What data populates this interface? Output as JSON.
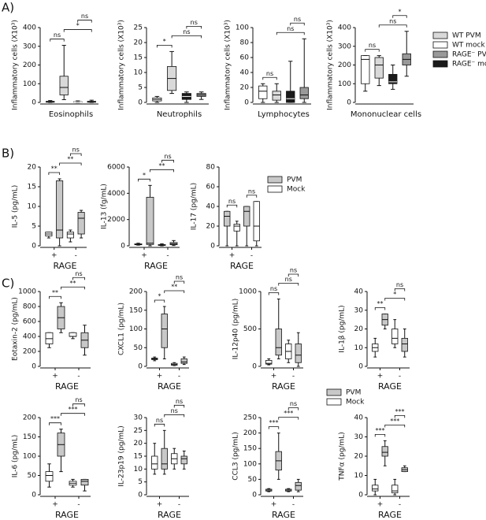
{
  "panels": [
    {
      "label": "A)",
      "legend": [
        {
          "name": "WT PVM",
          "color": "#d9d9d9"
        },
        {
          "name": "WT mock",
          "color": "#ffffff"
        },
        {
          "name": "RAGE⁻ PVM",
          "color": "#999999"
        },
        {
          "name": "RAGE⁻ mock",
          "color": "#1a1a1a"
        }
      ]
    },
    {
      "label": "B)",
      "legend": [
        {
          "name": "PVM",
          "color": "#c8c8c8"
        },
        {
          "name": "Mock",
          "color": "#ffffff"
        }
      ]
    },
    {
      "label": "C)",
      "legend": [
        {
          "name": "PVM",
          "color": "#c8c8c8"
        },
        {
          "name": "Mock",
          "color": "#ffffff"
        }
      ]
    }
  ],
  "chart_data": [
    {
      "type": "box",
      "ylabel": "Inflammatory cells (X10³)",
      "xlabel": "Eosinophils",
      "ylim": [
        0,
        400
      ],
      "yticks": [
        0,
        100,
        200,
        300,
        400
      ],
      "boxes": [
        {
          "color": "#ffffff",
          "values": [
            0,
            1,
            3,
            6,
            10
          ]
        },
        {
          "color": "#d9d9d9",
          "values": [
            15,
            40,
            80,
            140,
            305
          ]
        },
        {
          "color": "#1a1a1a",
          "values": [
            0,
            1,
            2,
            4,
            8
          ]
        },
        {
          "color": "#999999",
          "values": [
            0,
            1,
            3,
            6,
            12
          ]
        }
      ],
      "annotations": [
        {
          "text": "ns",
          "from": 0,
          "to": 1
        },
        {
          "text": "*",
          "from": 1,
          "to": 3
        },
        {
          "text": "ns",
          "from": 2,
          "to": 3
        }
      ]
    },
    {
      "type": "box",
      "ylabel": "Inflammatory cells (X10³)",
      "xlabel": "Neutrophils",
      "ylim": [
        0,
        25
      ],
      "yticks": [
        0,
        5,
        10,
        15,
        20,
        25
      ],
      "boxes": [
        {
          "color": "#ffffff",
          "values": [
            0,
            0.5,
            1,
            1.5,
            2
          ]
        },
        {
          "color": "#d9d9d9",
          "values": [
            3,
            4,
            8,
            12,
            17
          ]
        },
        {
          "color": "#1a1a1a",
          "values": [
            0,
            1,
            2,
            3,
            3.5
          ]
        },
        {
          "color": "#999999",
          "values": [
            1,
            2,
            2.5,
            3,
            3.5
          ]
        }
      ],
      "annotations": [
        {
          "text": "*",
          "from": 0,
          "to": 1
        },
        {
          "text": "ns",
          "from": 1,
          "to": 3
        },
        {
          "text": "ns",
          "from": 2,
          "to": 3
        }
      ]
    },
    {
      "type": "box",
      "ylabel": "Inflammatory cells (X10³)",
      "xlabel": "Lymphocytes",
      "ylim": [
        0,
        100
      ],
      "yticks": [
        0,
        20,
        40,
        60,
        80,
        100
      ],
      "boxes": [
        {
          "color": "#ffffff",
          "values": [
            0,
            5,
            15,
            22,
            25
          ]
        },
        {
          "color": "#d9d9d9",
          "values": [
            0,
            3,
            10,
            15,
            25
          ]
        },
        {
          "color": "#1a1a1a",
          "values": [
            0,
            0,
            5,
            15,
            55
          ]
        },
        {
          "color": "#999999",
          "values": [
            0,
            5,
            10,
            20,
            85
          ]
        }
      ],
      "annotations": [
        {
          "text": "ns",
          "from": 0,
          "to": 1
        },
        {
          "text": "ns",
          "from": 1,
          "to": 3
        },
        {
          "text": "ns",
          "from": 2,
          "to": 3
        }
      ]
    },
    {
      "type": "box",
      "ylabel": "Inflammatory cells (X10³)",
      "xlabel": "Mononuclear cells",
      "ylim": [
        0,
        400
      ],
      "yticks": [
        0,
        100,
        200,
        300,
        400
      ],
      "boxes": [
        {
          "color": "#ffffff",
          "values": [
            60,
            100,
            230,
            250,
            250
          ]
        },
        {
          "color": "#d9d9d9",
          "values": [
            90,
            130,
            200,
            240,
            250
          ]
        },
        {
          "color": "#1a1a1a",
          "values": [
            70,
            100,
            110,
            150,
            200
          ]
        },
        {
          "color": "#999999",
          "values": [
            140,
            200,
            230,
            260,
            380
          ]
        }
      ],
      "annotations": [
        {
          "text": "ns",
          "from": 0,
          "to": 1
        },
        {
          "text": "ns",
          "from": 1,
          "to": 3
        },
        {
          "text": "*",
          "from": 2,
          "to": 3
        }
      ]
    },
    {
      "type": "box",
      "ylabel": "IL-5  (pg/mL)",
      "xlabel": "RAGE",
      "categories": [
        "+",
        "-"
      ],
      "ylim": [
        0,
        20
      ],
      "yticks": [
        0,
        5,
        10,
        15,
        20
      ],
      "boxes": [
        {
          "color": "#ffffff",
          "values": [
            2,
            2.5,
            3,
            3.5,
            3.5
          ]
        },
        {
          "color": "#c8c8c8",
          "values": [
            0,
            2,
            4,
            16.5,
            17
          ]
        },
        {
          "color": "#ffffff",
          "values": [
            1,
            2,
            3,
            3.5,
            4
          ]
        },
        {
          "color": "#c8c8c8",
          "values": [
            2,
            3,
            7,
            8.5,
            9
          ]
        }
      ],
      "annotations": [
        {
          "text": "**",
          "from": 0,
          "to": 1
        },
        {
          "text": "**",
          "from": 1,
          "to": 3
        },
        {
          "text": "ns",
          "from": 2,
          "to": 3
        }
      ]
    },
    {
      "type": "box",
      "ylabel": "IL-13  (fg/mL)",
      "xlabel": "RAGE",
      "categories": [
        "+",
        "-"
      ],
      "ylim": [
        0,
        6000
      ],
      "yticks": [
        0,
        2000,
        4000,
        6000
      ],
      "boxes": [
        {
          "color": "#ffffff",
          "values": [
            50,
            80,
            100,
            150,
            200
          ]
        },
        {
          "color": "#c8c8c8",
          "values": [
            0,
            100,
            200,
            3700,
            4600
          ]
        },
        {
          "color": "#ffffff",
          "values": [
            0,
            30,
            50,
            100,
            150
          ]
        },
        {
          "color": "#c8c8c8",
          "values": [
            20,
            80,
            150,
            250,
            400
          ]
        }
      ],
      "annotations": [
        {
          "text": "*",
          "from": 0,
          "to": 1
        },
        {
          "text": "**",
          "from": 1,
          "to": 3
        },
        {
          "text": "ns",
          "from": 2,
          "to": 3
        }
      ]
    },
    {
      "type": "box",
      "ylabel": "IL-17  (pg/mL)",
      "xlabel": "RAGE",
      "categories": [
        "+",
        "-"
      ],
      "ylim": [
        0,
        80
      ],
      "yticks": [
        0,
        20,
        40,
        60,
        80
      ],
      "boxes": [
        {
          "color": "#c8c8c8",
          "values": [
            0,
            20,
            30,
            35,
            35
          ]
        },
        {
          "color": "#ffffff",
          "values": [
            0,
            15,
            20,
            22,
            25
          ]
        },
        {
          "color": "#c8c8c8",
          "values": [
            0,
            20,
            35,
            40,
            40
          ]
        },
        {
          "color": "#ffffff",
          "values": [
            0,
            5,
            20,
            45,
            45
          ]
        }
      ],
      "annotations": [
        {
          "text": "ns",
          "from": 0,
          "to": 1
        },
        {
          "text": "ns",
          "from": 2,
          "to": 3
        }
      ]
    },
    {
      "type": "box",
      "ylabel": "Eotaxin-2 (pg/mL)",
      "xlabel": "RAGE",
      "categories": [
        "+",
        "-"
      ],
      "ylim": [
        0,
        1000
      ],
      "yticks": [
        0,
        200,
        400,
        600,
        800,
        1000
      ],
      "boxes": [
        {
          "color": "#ffffff",
          "values": [
            250,
            300,
            370,
            450,
            450
          ]
        },
        {
          "color": "#c8c8c8",
          "values": [
            450,
            500,
            650,
            800,
            850
          ]
        },
        {
          "color": "#ffffff",
          "values": [
            370,
            400,
            400,
            450,
            450
          ]
        },
        {
          "color": "#c8c8c8",
          "values": [
            150,
            250,
            350,
            450,
            550
          ]
        }
      ],
      "annotations": [
        {
          "text": "**",
          "from": 0,
          "to": 1
        },
        {
          "text": "**",
          "from": 1,
          "to": 3
        },
        {
          "text": "ns",
          "from": 2,
          "to": 3
        }
      ]
    },
    {
      "type": "box",
      "ylabel": "CXCL1 (pg/mL)",
      "xlabel": "RAGE",
      "categories": [
        "+",
        "-"
      ],
      "ylim": [
        0,
        200
      ],
      "yticks": [
        0,
        50,
        100,
        150,
        200
      ],
      "boxes": [
        {
          "color": "#ffffff",
          "values": [
            15,
            18,
            20,
            22,
            25
          ]
        },
        {
          "color": "#c8c8c8",
          "values": [
            20,
            50,
            100,
            140,
            160
          ]
        },
        {
          "color": "#ffffff",
          "values": [
            2,
            3,
            5,
            8,
            10
          ]
        },
        {
          "color": "#c8c8c8",
          "values": [
            5,
            8,
            12,
            20,
            25
          ]
        }
      ],
      "annotations": [
        {
          "text": "*",
          "from": 0,
          "to": 1
        },
        {
          "text": "**",
          "from": 1,
          "to": 3
        },
        {
          "text": "ns",
          "from": 2,
          "to": 3
        }
      ]
    },
    {
      "type": "box",
      "ylabel": "IL-12p40 (pg/mL)",
      "xlabel": "RAGE",
      "categories": [
        "+",
        "-"
      ],
      "ylim": [
        0,
        1000
      ],
      "yticks": [
        0,
        500,
        1000
      ],
      "boxes": [
        {
          "color": "#ffffff",
          "values": [
            20,
            30,
            40,
            80,
            100
          ]
        },
        {
          "color": "#c8c8c8",
          "values": [
            100,
            150,
            250,
            500,
            900
          ]
        },
        {
          "color": "#ffffff",
          "values": [
            50,
            100,
            200,
            300,
            350
          ]
        },
        {
          "color": "#c8c8c8",
          "values": [
            0,
            50,
            150,
            300,
            450
          ]
        }
      ],
      "annotations": [
        {
          "text": "ns",
          "from": 0,
          "to": 1
        },
        {
          "text": "ns",
          "from": 1,
          "to": 3
        },
        {
          "text": "ns",
          "from": 2,
          "to": 3
        }
      ]
    },
    {
      "type": "box",
      "ylabel": "IL-1β (pg/mL)",
      "xlabel": "RAGE",
      "categories": [
        "+",
        "-"
      ],
      "ylim": [
        0,
        40
      ],
      "yticks": [
        0,
        10,
        20,
        30,
        40
      ],
      "boxes": [
        {
          "color": "#ffffff",
          "values": [
            5,
            8,
            10,
            12,
            15
          ]
        },
        {
          "color": "#c8c8c8",
          "values": [
            20,
            22,
            25,
            28,
            28
          ]
        },
        {
          "color": "#ffffff",
          "values": [
            10,
            12,
            15,
            20,
            25
          ]
        },
        {
          "color": "#c8c8c8",
          "values": [
            5,
            8,
            12,
            15,
            20
          ]
        }
      ],
      "annotations": [
        {
          "text": "**",
          "from": 0,
          "to": 1
        },
        {
          "text": "*",
          "from": 1,
          "to": 3
        },
        {
          "text": "ns",
          "from": 2,
          "to": 3
        }
      ]
    },
    {
      "type": "box",
      "ylabel": "IL-6 (pg/mL)",
      "xlabel": "RAGE",
      "categories": [
        "+",
        "-"
      ],
      "ylim": [
        0,
        200
      ],
      "yticks": [
        0,
        50,
        100,
        150,
        200
      ],
      "boxes": [
        {
          "color": "#ffffff",
          "values": [
            20,
            35,
            50,
            60,
            80
          ]
        },
        {
          "color": "#c8c8c8",
          "values": [
            60,
            100,
            130,
            160,
            170
          ]
        },
        {
          "color": "#ffffff",
          "values": [
            20,
            25,
            30,
            35,
            40
          ]
        },
        {
          "color": "#c8c8c8",
          "values": [
            10,
            25,
            35,
            40,
            40
          ]
        }
      ],
      "annotations": [
        {
          "text": "***",
          "from": 0,
          "to": 1
        },
        {
          "text": "***",
          "from": 1,
          "to": 3
        },
        {
          "text": "ns",
          "from": 2,
          "to": 3
        }
      ]
    },
    {
      "type": "box",
      "ylabel": "IL-23p19 (pg/mL)",
      "xlabel": "RAGE",
      "categories": [
        "+",
        "-"
      ],
      "ylim": [
        0,
        30
      ],
      "yticks": [
        0,
        5,
        10,
        15,
        20,
        25,
        30
      ],
      "boxes": [
        {
          "color": "#ffffff",
          "values": [
            8,
            10,
            12,
            15,
            20
          ]
        },
        {
          "color": "#c8c8c8",
          "values": [
            8,
            10,
            12,
            18,
            25
          ]
        },
        {
          "color": "#ffffff",
          "values": [
            10,
            12,
            14,
            16,
            18
          ]
        },
        {
          "color": "#c8c8c8",
          "values": [
            10,
            12,
            14,
            15,
            17
          ]
        }
      ],
      "annotations": [
        {
          "text": "ns",
          "from": 0,
          "to": 1
        },
        {
          "text": "ns",
          "from": 1,
          "to": 3
        },
        {
          "text": "ns",
          "from": 2,
          "to": 3
        }
      ]
    },
    {
      "type": "box",
      "ylabel": "CCL3 (pg/mL)",
      "xlabel": "RAGE",
      "categories": [
        "+",
        "-"
      ],
      "ylim": [
        0,
        250
      ],
      "yticks": [
        0,
        50,
        100,
        150,
        200,
        250
      ],
      "boxes": [
        {
          "color": "#ffffff",
          "values": [
            10,
            12,
            15,
            18,
            20
          ]
        },
        {
          "color": "#c8c8c8",
          "values": [
            50,
            80,
            110,
            140,
            200
          ]
        },
        {
          "color": "#ffffff",
          "values": [
            10,
            12,
            15,
            18,
            20
          ]
        },
        {
          "color": "#c8c8c8",
          "values": [
            10,
            15,
            30,
            40,
            50
          ]
        }
      ],
      "annotations": [
        {
          "text": "***",
          "from": 0,
          "to": 1
        },
        {
          "text": "***",
          "from": 1,
          "to": 3
        },
        {
          "text": "ns",
          "from": 2,
          "to": 3
        }
      ]
    },
    {
      "type": "box",
      "ylabel": "TNFα (pg/mL)",
      "xlabel": "RAGE",
      "categories": [
        "+",
        "-"
      ],
      "ylim": [
        0,
        40
      ],
      "yticks": [
        0,
        10,
        20,
        30,
        40
      ],
      "boxes": [
        {
          "color": "#ffffff",
          "values": [
            0,
            2,
            3,
            5,
            8
          ]
        },
        {
          "color": "#c8c8c8",
          "values": [
            15,
            20,
            22,
            25,
            28
          ]
        },
        {
          "color": "#ffffff",
          "values": [
            0,
            1,
            2,
            5,
            8
          ]
        },
        {
          "color": "#c8c8c8",
          "values": [
            12,
            12,
            13,
            14,
            15
          ]
        }
      ],
      "annotations": [
        {
          "text": "***",
          "from": 0,
          "to": 1
        },
        {
          "text": "***",
          "from": 1,
          "to": 3
        },
        {
          "text": "***",
          "from": 2,
          "to": 3
        }
      ]
    }
  ]
}
